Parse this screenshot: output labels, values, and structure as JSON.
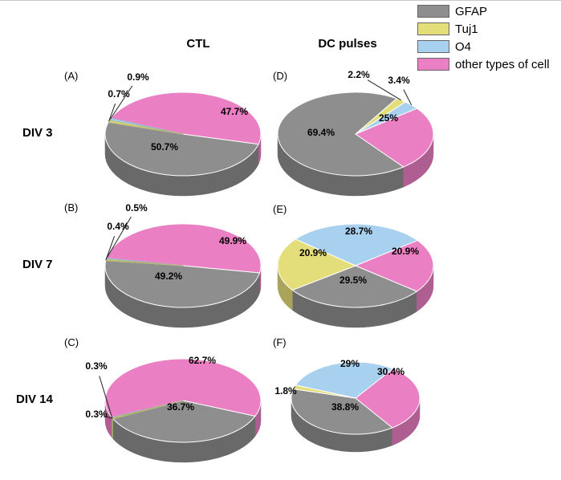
{
  "legend": {
    "items": [
      {
        "label": "GFAP",
        "color": "#8e8e8e"
      },
      {
        "label": "Tuj1",
        "color": "#e4de7a"
      },
      {
        "label": "O4",
        "color": "#a8d1f0"
      },
      {
        "label": "other types of cell",
        "color": "#eb7fc4"
      }
    ]
  },
  "columns": [
    {
      "label": "CTL"
    },
    {
      "label": "DC pulses"
    }
  ],
  "rows": [
    {
      "label": "DIV 3"
    },
    {
      "label": "DIV 7"
    },
    {
      "label": "DIV 14"
    }
  ],
  "chart_data": [
    {
      "type": "pie",
      "panel": "A",
      "panel_label": "(A)",
      "row": "DIV 3",
      "column": "CTL",
      "unit": "%",
      "slices": [
        {
          "name": "GFAP",
          "value": 50.7,
          "label": "50.7%"
        },
        {
          "name": "Tuj1",
          "value": 0.7,
          "label": "0.7%"
        },
        {
          "name": "O4",
          "value": 0.9,
          "label": "0.9%"
        },
        {
          "name": "other types of cell",
          "value": 47.7,
          "label": "47.7%"
        }
      ]
    },
    {
      "type": "pie",
      "panel": "B",
      "panel_label": "(B)",
      "row": "DIV 7",
      "column": "CTL",
      "unit": "%",
      "slices": [
        {
          "name": "GFAP",
          "value": 49.2,
          "label": "49.2%"
        },
        {
          "name": "Tuj1",
          "value": 0.4,
          "label": "0.4%"
        },
        {
          "name": "O4",
          "value": 0.5,
          "label": "0.5%"
        },
        {
          "name": "other types of cell",
          "value": 49.9,
          "label": "49.9%"
        }
      ]
    },
    {
      "type": "pie",
      "panel": "C",
      "panel_label": "(C)",
      "row": "DIV 14",
      "column": "CTL",
      "unit": "%",
      "slices": [
        {
          "name": "GFAP",
          "value": 36.7,
          "label": "36.7%"
        },
        {
          "name": "Tuj1",
          "value": 0.3,
          "label": "0.3%"
        },
        {
          "name": "O4",
          "value": 0.3,
          "label": "0.3%"
        },
        {
          "name": "other types of cell",
          "value": 62.7,
          "label": "62.7%"
        }
      ]
    },
    {
      "type": "pie",
      "panel": "D",
      "panel_label": "(D)",
      "row": "DIV 3",
      "column": "DC pulses",
      "unit": "%",
      "slices": [
        {
          "name": "GFAP",
          "value": 69.4,
          "label": "69.4%"
        },
        {
          "name": "Tuj1",
          "value": 2.2,
          "label": "2.2%"
        },
        {
          "name": "O4",
          "value": 3.4,
          "label": "3.4%"
        },
        {
          "name": "other types of cell",
          "value": 25,
          "label": "25%"
        }
      ]
    },
    {
      "type": "pie",
      "panel": "E",
      "panel_label": "(E)",
      "row": "DIV 7",
      "column": "DC pulses",
      "unit": "%",
      "slices": [
        {
          "name": "GFAP",
          "value": 29.5,
          "label": "29.5%"
        },
        {
          "name": "Tuj1",
          "value": 20.9,
          "label": "20.9%"
        },
        {
          "name": "O4",
          "value": 28.7,
          "label": "28.7%"
        },
        {
          "name": "other types of cell",
          "value": 20.9,
          "label": "20.9%"
        }
      ]
    },
    {
      "type": "pie",
      "panel": "F",
      "panel_label": "(F)",
      "row": "DIV 14",
      "column": "DC pulses",
      "unit": "%",
      "slices": [
        {
          "name": "GFAP",
          "value": 38.8,
          "label": "38.8%"
        },
        {
          "name": "Tuj1",
          "value": 1.8,
          "label": "1.8%"
        },
        {
          "name": "O4",
          "value": 29,
          "label": "29%"
        },
        {
          "name": "other types of cell",
          "value": 30.4,
          "label": "30.4%"
        }
      ]
    }
  ]
}
